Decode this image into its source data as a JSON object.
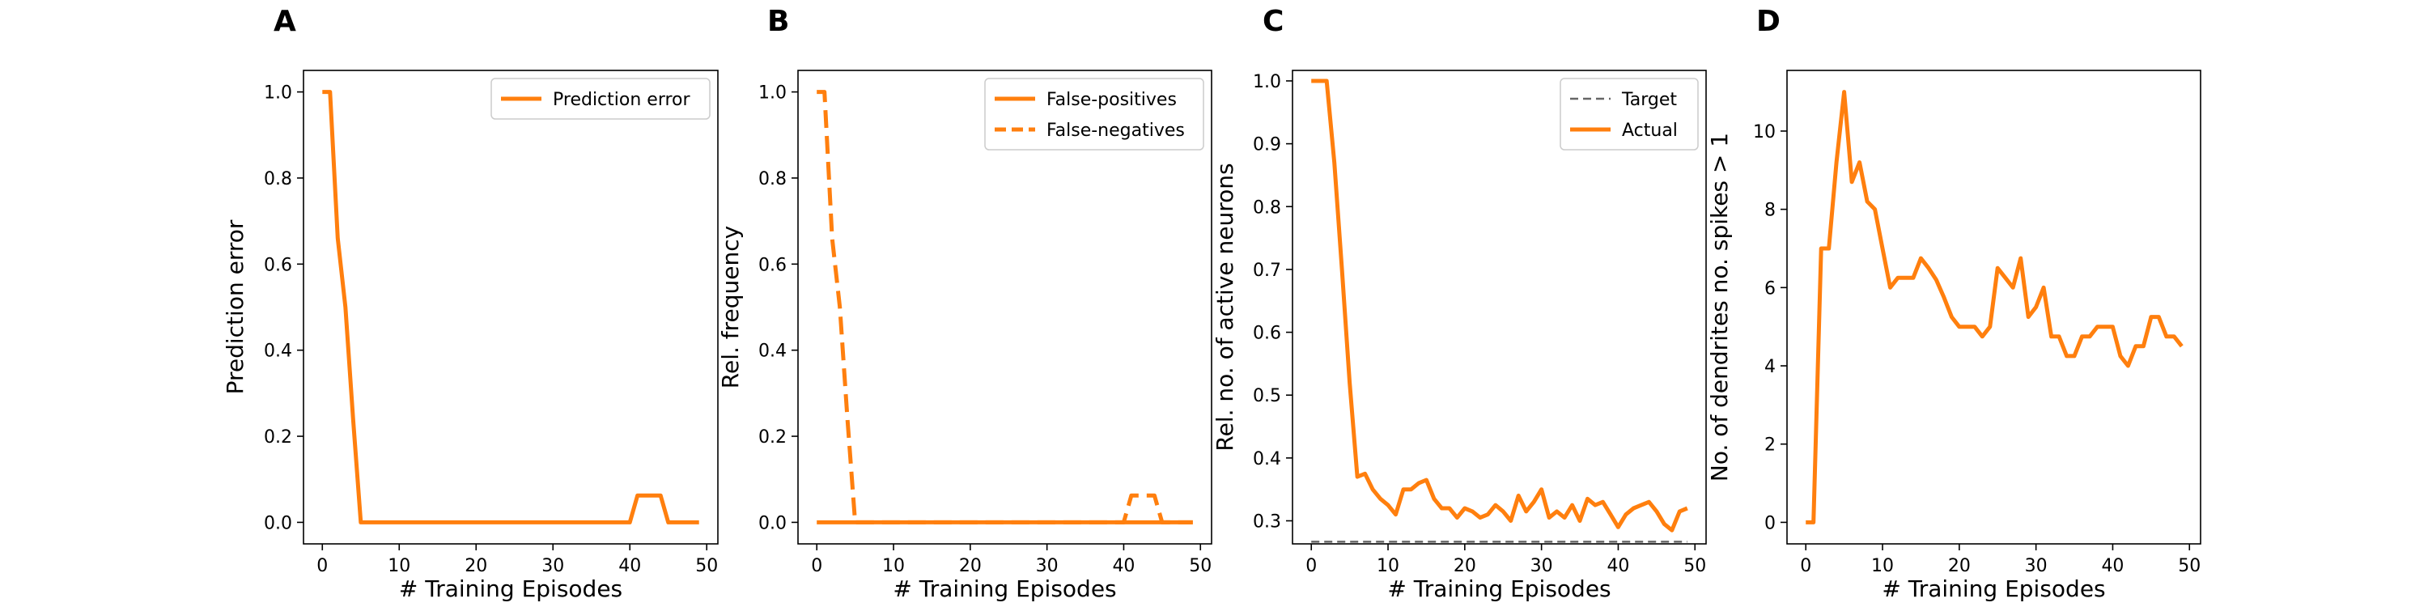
{
  "colors": {
    "orange": "#ff7f0e",
    "gray": "#666666",
    "axis": "#000000"
  },
  "chart_data": [
    {
      "panel": "A",
      "type": "line",
      "xlabel": "# Training Episodes",
      "ylabel": "Prediction error",
      "xlim": [
        -2.45,
        51.45
      ],
      "ylim": [
        -0.05,
        1.05
      ],
      "xticks": [
        0,
        10,
        20,
        30,
        40,
        50
      ],
      "yticks": [
        0.0,
        0.2,
        0.4,
        0.6,
        0.8,
        1.0
      ],
      "ytick_format": 1,
      "legend_position": "upper right",
      "series": [
        {
          "name": "Prediction error",
          "style": "solid",
          "color": "#ff7f0e",
          "x": [
            0,
            1,
            2,
            3,
            4,
            5,
            6,
            7,
            8,
            9,
            10,
            11,
            12,
            13,
            14,
            15,
            16,
            17,
            18,
            19,
            20,
            21,
            22,
            23,
            24,
            25,
            26,
            27,
            28,
            29,
            30,
            31,
            32,
            33,
            34,
            35,
            36,
            37,
            38,
            39,
            40,
            41,
            42,
            43,
            44,
            45,
            46,
            47,
            48,
            49
          ],
          "y": [
            1.0,
            1.0,
            0.66,
            0.5,
            0.24,
            0.0,
            0,
            0,
            0,
            0,
            0,
            0,
            0,
            0,
            0,
            0,
            0,
            0,
            0,
            0,
            0,
            0,
            0,
            0,
            0,
            0,
            0,
            0,
            0,
            0,
            0,
            0,
            0,
            0,
            0,
            0,
            0,
            0,
            0,
            0,
            0,
            0.0625,
            0.0625,
            0.0625,
            0.0625,
            0,
            0,
            0,
            0,
            0
          ]
        }
      ]
    },
    {
      "panel": "B",
      "type": "line",
      "xlabel": "# Training Episodes",
      "ylabel": "Rel. frequency",
      "xlim": [
        -2.45,
        51.45
      ],
      "ylim": [
        -0.05,
        1.05
      ],
      "xticks": [
        0,
        10,
        20,
        30,
        40,
        50
      ],
      "yticks": [
        0.0,
        0.2,
        0.4,
        0.6,
        0.8,
        1.0
      ],
      "ytick_format": 1,
      "legend_position": "upper right",
      "series": [
        {
          "name": "False-positives",
          "style": "solid",
          "color": "#ff7f0e",
          "x": [
            0,
            1,
            2,
            3,
            4,
            5,
            6,
            7,
            8,
            9,
            10,
            11,
            12,
            13,
            14,
            15,
            16,
            17,
            18,
            19,
            20,
            21,
            22,
            23,
            24,
            25,
            26,
            27,
            28,
            29,
            30,
            31,
            32,
            33,
            34,
            35,
            36,
            37,
            38,
            39,
            40,
            41,
            42,
            43,
            44,
            45,
            46,
            47,
            48,
            49
          ],
          "y": [
            0,
            0,
            0,
            0,
            0,
            0,
            0,
            0,
            0,
            0,
            0,
            0,
            0,
            0,
            0,
            0,
            0,
            0,
            0,
            0,
            0,
            0,
            0,
            0,
            0,
            0,
            0,
            0,
            0,
            0,
            0,
            0,
            0,
            0,
            0,
            0,
            0,
            0,
            0,
            0,
            0,
            0,
            0,
            0,
            0,
            0,
            0,
            0,
            0,
            0
          ]
        },
        {
          "name": "False-negatives",
          "style": "dashed",
          "color": "#ff7f0e",
          "x": [
            0,
            1,
            2,
            3,
            4,
            5,
            6,
            7,
            8,
            9,
            10,
            11,
            12,
            13,
            14,
            15,
            16,
            17,
            18,
            19,
            20,
            21,
            22,
            23,
            24,
            25,
            26,
            27,
            28,
            29,
            30,
            31,
            32,
            33,
            34,
            35,
            36,
            37,
            38,
            39,
            40,
            41,
            42,
            43,
            44,
            45,
            46,
            47,
            48,
            49
          ],
          "y": [
            1.0,
            1.0,
            0.66,
            0.5,
            0.24,
            0.0,
            0,
            0,
            0,
            0,
            0,
            0,
            0,
            0,
            0,
            0,
            0,
            0,
            0,
            0,
            0,
            0,
            0,
            0,
            0,
            0,
            0,
            0,
            0,
            0,
            0,
            0,
            0,
            0,
            0,
            0,
            0,
            0,
            0,
            0,
            0,
            0.0625,
            0.0625,
            0.0625,
            0.0625,
            0,
            0,
            0,
            0,
            0
          ]
        }
      ]
    },
    {
      "panel": "C",
      "type": "line",
      "xlabel": "# Training Episodes",
      "ylabel": "Rel. no. of active neurons",
      "xlim": [
        -2.45,
        51.45
      ],
      "ylim": [
        0.2633,
        1.0167
      ],
      "xticks": [
        0,
        10,
        20,
        30,
        40,
        50
      ],
      "yticks": [
        0.3,
        0.4,
        0.5,
        0.6,
        0.7,
        0.8,
        0.9,
        1.0
      ],
      "ytick_format": 1,
      "legend_position": "upper right",
      "series": [
        {
          "name": "Target",
          "style": "dashed-thin",
          "color": "#666666",
          "x": [
            0,
            49
          ],
          "y": [
            0.2667,
            0.2667
          ]
        },
        {
          "name": "Actual",
          "style": "solid",
          "color": "#ff7f0e",
          "x": [
            0,
            1,
            2,
            3,
            4,
            5,
            6,
            7,
            8,
            9,
            10,
            11,
            12,
            13,
            14,
            15,
            16,
            17,
            18,
            19,
            20,
            21,
            22,
            23,
            24,
            25,
            26,
            27,
            28,
            29,
            30,
            31,
            32,
            33,
            34,
            35,
            36,
            37,
            38,
            39,
            40,
            41,
            42,
            43,
            44,
            45,
            46,
            47,
            48,
            49
          ],
          "y": [
            1.0,
            1.0,
            1.0,
            0.87,
            0.7,
            0.52,
            0.37,
            0.375,
            0.35,
            0.335,
            0.325,
            0.31,
            0.35,
            0.35,
            0.36,
            0.365,
            0.335,
            0.32,
            0.32,
            0.305,
            0.32,
            0.315,
            0.305,
            0.31,
            0.325,
            0.315,
            0.3,
            0.34,
            0.315,
            0.33,
            0.35,
            0.305,
            0.315,
            0.305,
            0.325,
            0.3,
            0.335,
            0.325,
            0.33,
            0.31,
            0.29,
            0.31,
            0.32,
            0.325,
            0.33,
            0.315,
            0.295,
            0.285,
            0.315,
            0.32
          ]
        }
      ]
    },
    {
      "panel": "D",
      "type": "line",
      "xlabel": "# Training Episodes",
      "ylabel": "No. of dendrites no. spikes > 1",
      "xlim": [
        -2.45,
        51.45
      ],
      "ylim": [
        -0.55,
        11.55
      ],
      "xticks": [
        0,
        10,
        20,
        30,
        40,
        50
      ],
      "yticks": [
        0,
        2,
        4,
        6,
        8,
        10
      ],
      "ytick_format": 0,
      "legend_position": "none",
      "series": [
        {
          "name": "",
          "style": "solid",
          "color": "#ff7f0e",
          "x": [
            0,
            1,
            2,
            3,
            4,
            5,
            6,
            7,
            8,
            9,
            10,
            11,
            12,
            13,
            14,
            15,
            16,
            17,
            18,
            19,
            20,
            21,
            22,
            23,
            24,
            25,
            26,
            27,
            28,
            29,
            30,
            31,
            32,
            33,
            34,
            35,
            36,
            37,
            38,
            39,
            40,
            41,
            42,
            43,
            44,
            45,
            46,
            47,
            48,
            49
          ],
          "y": [
            0,
            0,
            7,
            7,
            9.2,
            11,
            8.7,
            9.2,
            8.2,
            8,
            7,
            6,
            6.25,
            6.25,
            6.25,
            6.75,
            6.5,
            6.2,
            5.75,
            5.25,
            5,
            5,
            5,
            4.75,
            5,
            6.5,
            6.25,
            6,
            6.75,
            5.25,
            5.5,
            6,
            4.75,
            4.75,
            4.25,
            4.25,
            4.75,
            4.75,
            5,
            5,
            5,
            4.25,
            4,
            4.5,
            4.5,
            5.25,
            5.25,
            4.75,
            4.75,
            4.5
          ]
        }
      ]
    }
  ]
}
